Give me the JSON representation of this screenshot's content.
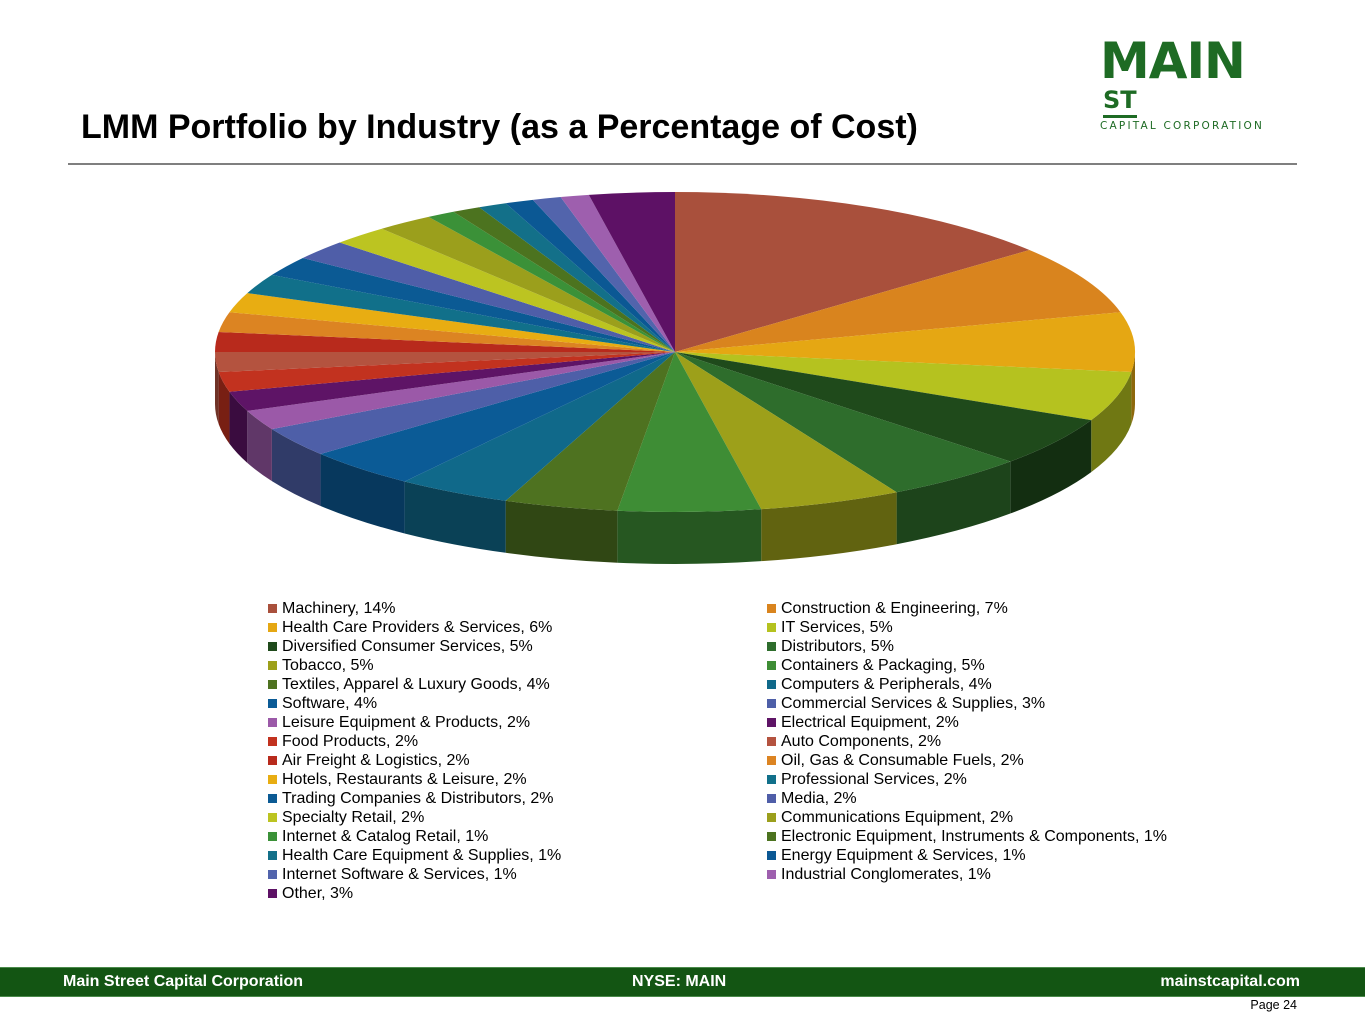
{
  "logo": {
    "main": "MAIN",
    "superscript": "ST",
    "sub": "CAPITAL CORPORATION",
    "color": "#1e6b24"
  },
  "header": {
    "title": "LMM Portfolio by Industry (as a Percentage of Cost)"
  },
  "chart_data": {
    "type": "pie",
    "title": "LMM Portfolio by Industry (as a Percentage of Cost)",
    "style": "3d-pie",
    "start": "12 o'clock, clockwise",
    "legend_placement": "bottom, two columns",
    "unit": "%",
    "slices": [
      {
        "label": "Machinery",
        "value": 14,
        "color": "#a9503c"
      },
      {
        "label": "Construction & Engineering",
        "value": 7,
        "color": "#d9841e"
      },
      {
        "label": "Health Care Providers & Services",
        "value": 6,
        "color": "#e5a713"
      },
      {
        "label": "IT Services",
        "value": 5,
        "color": "#b5c21f"
      },
      {
        "label": "Diversified Consumer Services",
        "value": 5,
        "color": "#1f4a1b"
      },
      {
        "label": "Distributors",
        "value": 5,
        "color": "#2e6d2c"
      },
      {
        "label": "Tobacco",
        "value": 5,
        "color": "#9da01a"
      },
      {
        "label": "Containers & Packaging",
        "value": 5,
        "color": "#3e8d35"
      },
      {
        "label": "Textiles, Apparel & Luxury Goods",
        "value": 4,
        "color": "#4e7220"
      },
      {
        "label": "Computers & Peripherals",
        "value": 4,
        "color": "#10698a"
      },
      {
        "label": "Software",
        "value": 4,
        "color": "#0b5b96"
      },
      {
        "label": "Commercial Services & Supplies",
        "value": 3,
        "color": "#4e5fa8"
      },
      {
        "label": "Leisure Equipment & Products",
        "value": 2,
        "color": "#9b59a8"
      },
      {
        "label": "Electrical Equipment",
        "value": 2,
        "color": "#5e1466"
      },
      {
        "label": "Food Products",
        "value": 2,
        "color": "#c2321f"
      },
      {
        "label": "Auto Components",
        "value": 2,
        "color": "#b4533f"
      },
      {
        "label": "Air Freight & Logistics",
        "value": 2,
        "color": "#b82a1c"
      },
      {
        "label": "Oil, Gas & Consumable Fuels",
        "value": 2,
        "color": "#dc8422"
      },
      {
        "label": "Hotels, Restaurants & Leisure",
        "value": 2,
        "color": "#e8ad12"
      },
      {
        "label": "Professional Services",
        "value": 2,
        "color": "#11708a"
      },
      {
        "label": "Trading Companies & Distributors",
        "value": 2,
        "color": "#0b5a94"
      },
      {
        "label": "Media",
        "value": 2,
        "color": "#4f5ea8"
      },
      {
        "label": "Specialty Retail",
        "value": 2,
        "color": "#bcc421"
      },
      {
        "label": "Communications Equipment",
        "value": 2,
        "color": "#9b9f1c"
      },
      {
        "label": "Internet & Catalog Retail",
        "value": 1,
        "color": "#3b9138"
      },
      {
        "label": "Electronic Equipment, Instruments & Components",
        "value": 1,
        "color": "#4c731f"
      },
      {
        "label": "Health Care Equipment & Supplies",
        "value": 1,
        "color": "#137089"
      },
      {
        "label": "Energy Equipment & Services",
        "value": 1,
        "color": "#0b5894"
      },
      {
        "label": "Internet Software & Services",
        "value": 1,
        "color": "#5264ac"
      },
      {
        "label": "Industrial Conglomerates",
        "value": 1,
        "color": "#9e5fae"
      },
      {
        "label": "Other",
        "value": 3,
        "color": "#5d1165"
      }
    ]
  },
  "footer": {
    "left": "Main Street Capital Corporation",
    "center": "NYSE: MAIN",
    "right": "mainstcapital.com",
    "page": "Page  24"
  }
}
